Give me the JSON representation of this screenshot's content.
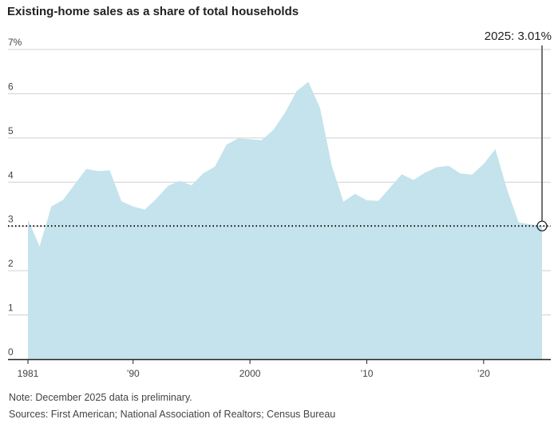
{
  "chart_data": {
    "type": "area",
    "title": "Existing-home sales as a share of total households",
    "xlabel": "",
    "ylabel": "",
    "x": [
      1981,
      1982,
      1983,
      1984,
      1985,
      1986,
      1987,
      1988,
      1989,
      1990,
      1991,
      1992,
      1993,
      1994,
      1995,
      1996,
      1997,
      1998,
      1999,
      2000,
      2001,
      2002,
      2003,
      2004,
      2005,
      2006,
      2007,
      2008,
      2009,
      2010,
      2011,
      2012,
      2013,
      2014,
      2015,
      2016,
      2017,
      2018,
      2019,
      2020,
      2021,
      2022,
      2023,
      2024,
      2025
    ],
    "values": [
      3.15,
      2.55,
      3.45,
      3.6,
      3.95,
      4.3,
      4.25,
      4.27,
      3.57,
      3.45,
      3.38,
      3.63,
      3.92,
      4.03,
      3.93,
      4.2,
      4.35,
      4.85,
      4.99,
      4.97,
      4.95,
      5.18,
      5.57,
      6.06,
      6.27,
      5.68,
      4.38,
      3.56,
      3.74,
      3.59,
      3.58,
      3.88,
      4.18,
      4.05,
      4.22,
      4.34,
      4.37,
      4.2,
      4.17,
      4.41,
      4.75,
      3.84,
      3.09,
      3.05,
      3.01
    ],
    "ylim": [
      0,
      7
    ],
    "xlim": [
      1981,
      2025.5
    ],
    "y_ticks": [
      "0",
      "1",
      "2",
      "3",
      "4",
      "5",
      "6",
      "7%"
    ],
    "x_ticks": [
      {
        "value": 1981,
        "label": "1981"
      },
      {
        "value": 1990,
        "label": "’90"
      },
      {
        "value": 2000,
        "label": "2000"
      },
      {
        "value": 2010,
        "label": "’10"
      },
      {
        "value": 2020,
        "label": "’20"
      }
    ],
    "reference_line": {
      "value": 3.01,
      "style": "dotted"
    },
    "annotation": {
      "x": 2025,
      "y": 3.01,
      "label": "2025: 3.01%"
    },
    "colors": {
      "area": "#c4e3ec",
      "grid": "#d0d0d0",
      "axis": "#222222",
      "reference": "#111111"
    },
    "grid": true
  },
  "notes": {
    "note": "Note: December 2025 data is preliminary.",
    "sources": "Sources: First American; National Association of Realtors; Census Bureau"
  }
}
